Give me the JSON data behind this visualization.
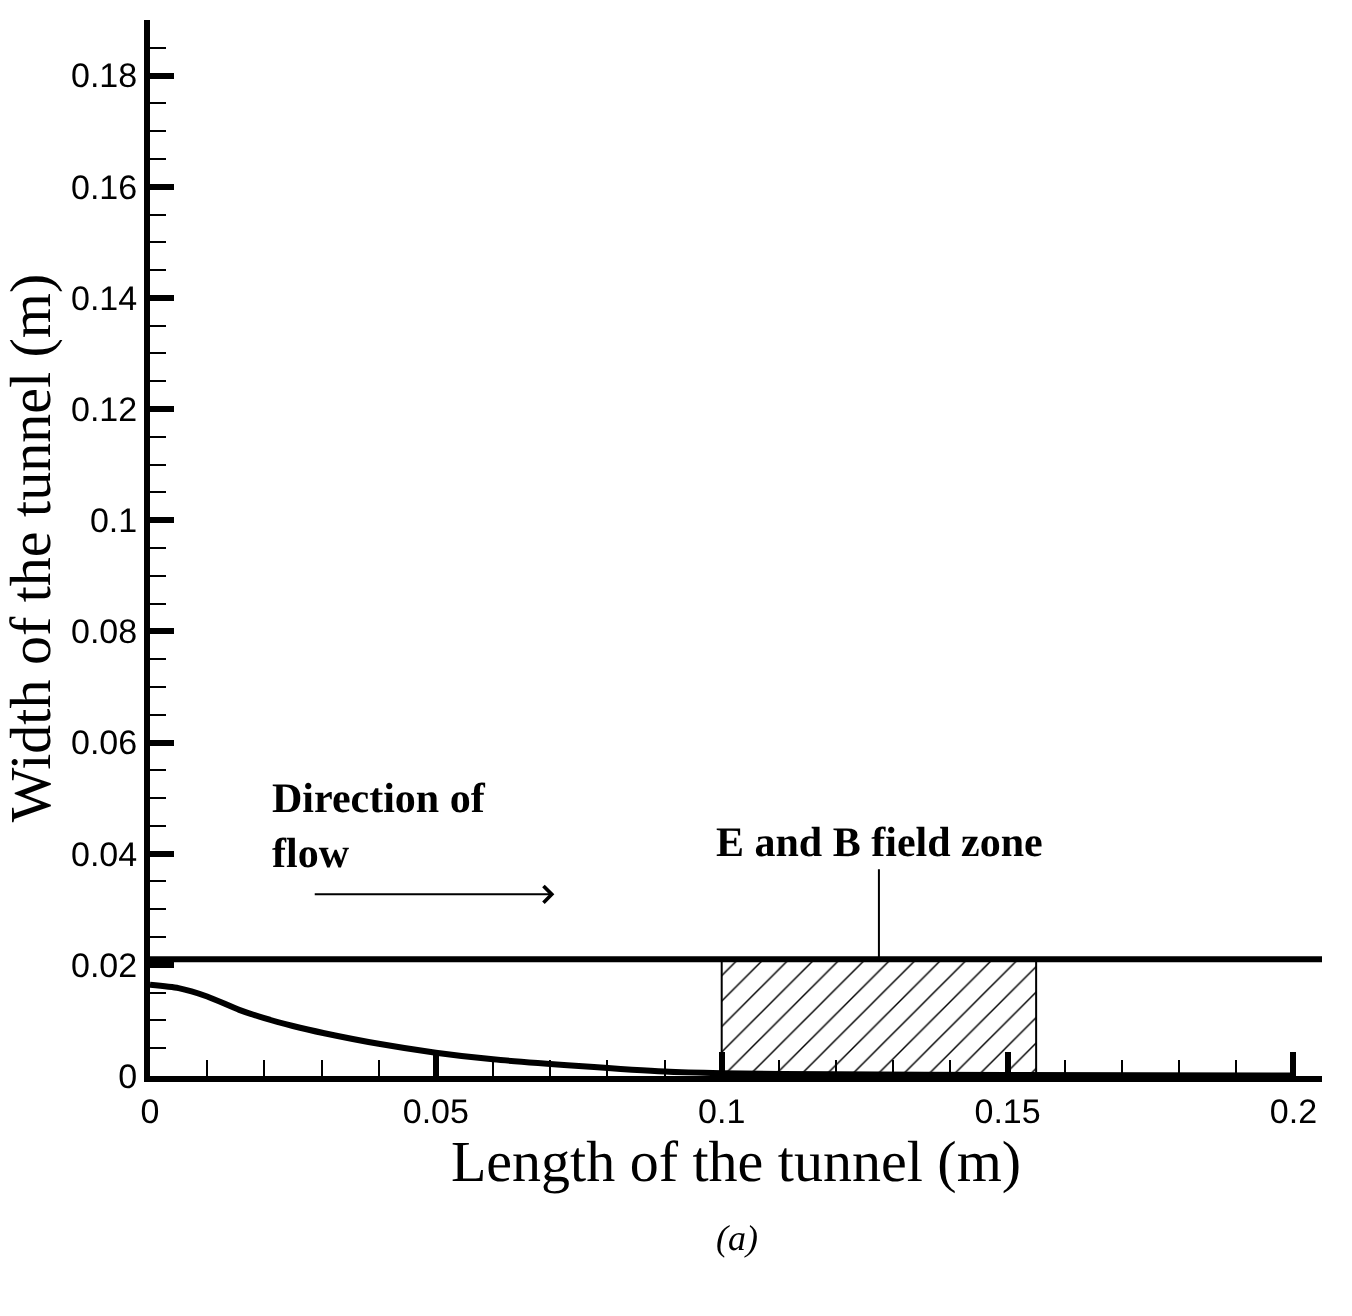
{
  "chart_data": {
    "type": "line",
    "xlabel": "Length of the tunnel (m)",
    "ylabel": "Width of the tunnel (m)",
    "x": [
      0,
      0.005,
      0.01,
      0.0156,
      0.02,
      0.025,
      0.0305,
      0.04,
      0.05,
      0.06,
      0.075,
      0.09,
      0.1,
      0.12,
      0.15,
      0.2
    ],
    "series": [
      {
        "color": "#000000",
        "values": [
          0.0164,
          0.0158,
          0.0143,
          0.0119,
          0.0104,
          0.009,
          0.0077,
          0.0058,
          0.0042,
          0.003,
          0.0018,
          0.0008,
          0.0005,
          0.0003,
          0.0002,
          0.0001
        ]
      }
    ],
    "xlim": [
      0,
      0.205
    ],
    "xticks": [
      0,
      0.05,
      0.1,
      0.15,
      0.2
    ],
    "ylim": [
      0,
      0.19
    ],
    "yticks": [
      0,
      0.02,
      0.04,
      0.06,
      0.08,
      0.1,
      0.12,
      0.14,
      0.16,
      0.18
    ],
    "ref_lines": [
      {
        "axis": "y",
        "value": 0.021,
        "color": "#000000"
      }
    ],
    "bands": [
      {
        "axis": "x",
        "from": 0.1,
        "to": 0.155,
        "label": "E and B field zone",
        "color": "#000000"
      }
    ],
    "annotations": [
      "Direction of flow",
      "(a)"
    ],
    "grid": false,
    "marker": "none",
    "line_style": "solid"
  }
}
